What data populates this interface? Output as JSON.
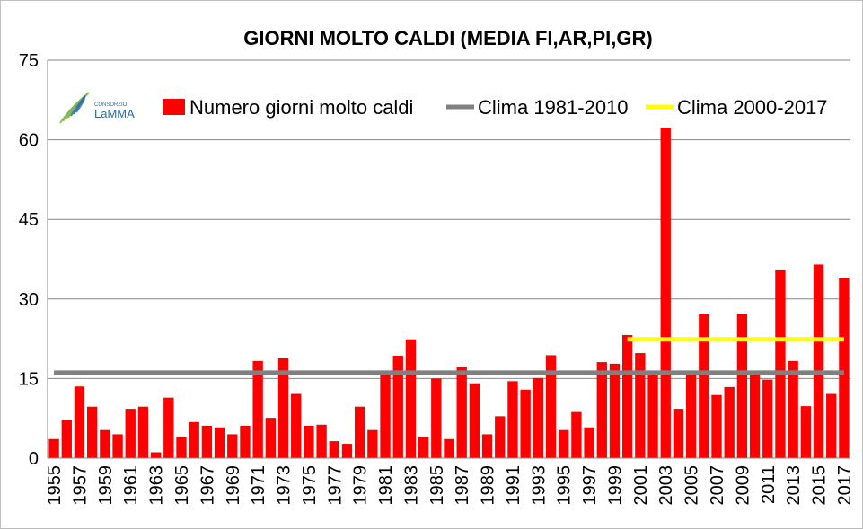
{
  "chart_data": {
    "type": "bar",
    "title": "GIORNI MOLTO CALDI (MEDIA FI,AR,PI,GR)",
    "xlabel": "",
    "ylabel": "",
    "ylim": [
      0,
      75
    ],
    "yticks": [
      0,
      15,
      30,
      45,
      60,
      75
    ],
    "grid": true,
    "legend_position": "top",
    "categories": [
      "1955",
      "1956",
      "1957",
      "1958",
      "1959",
      "1960",
      "1961",
      "1962",
      "1963",
      "1964",
      "1965",
      "1966",
      "1967",
      "1968",
      "1969",
      "1970",
      "1971",
      "1972",
      "1973",
      "1974",
      "1975",
      "1976",
      "1977",
      "1978",
      "1979",
      "1980",
      "1981",
      "1982",
      "1983",
      "1984",
      "1985",
      "1986",
      "1987",
      "1988",
      "1989",
      "1990",
      "1991",
      "1992",
      "1993",
      "1994",
      "1995",
      "1996",
      "1997",
      "1998",
      "1999",
      "2000",
      "2001",
      "2002",
      "2003",
      "2004",
      "2005",
      "2006",
      "2007",
      "2008",
      "2009",
      "2010",
      "2011",
      "2012",
      "2013",
      "2014",
      "2015",
      "2016",
      "2017"
    ],
    "xtick_labels": [
      "1955",
      "1957",
      "1959",
      "1961",
      "1963",
      "1965",
      "1967",
      "1969",
      "1971",
      "1973",
      "1975",
      "1977",
      "1979",
      "1981",
      "1983",
      "1985",
      "1987",
      "1989",
      "1991",
      "1993",
      "1995",
      "1997",
      "1999",
      "2001",
      "2003",
      "2005",
      "2007",
      "2009",
      "2011",
      "2013",
      "2015",
      "2017"
    ],
    "series": [
      {
        "name": "Numero giorni molto caldi",
        "color": "#ff0000",
        "values": [
          3.6,
          7.2,
          13.5,
          9.7,
          5.3,
          4.5,
          9.3,
          9.7,
          1.1,
          11.4,
          4.0,
          6.8,
          6.1,
          5.8,
          4.5,
          6.1,
          18.3,
          7.6,
          18.8,
          12.1,
          6.1,
          6.3,
          3.2,
          2.7,
          9.7,
          5.3,
          16.1,
          19.3,
          22.4,
          4.0,
          15.0,
          3.6,
          17.2,
          14.1,
          4.5,
          7.9,
          14.5,
          12.9,
          15.1,
          19.4,
          5.3,
          8.7,
          5.8,
          18.1,
          17.8,
          23.2,
          19.8,
          16.1,
          62.3,
          9.3,
          15.8,
          27.2,
          11.9,
          13.4,
          27.2,
          15.7,
          14.8,
          35.4,
          18.3,
          9.8,
          36.5,
          12.1,
          33.9
        ]
      }
    ],
    "reference_lines": [
      {
        "name": "Clima 1981-2010",
        "color": "#808080",
        "value": 16.1,
        "x_start": "1955",
        "x_end": "2017"
      },
      {
        "name": "Clima 2000-2017",
        "color": "#ffff00",
        "value": 22.4,
        "x_start": "2000",
        "x_end": "2017"
      }
    ]
  },
  "logo": {
    "small_text": "CONSORZIO",
    "brand_text": "LaMMA",
    "colors": [
      "#7ab648",
      "#2a6ca8"
    ]
  }
}
